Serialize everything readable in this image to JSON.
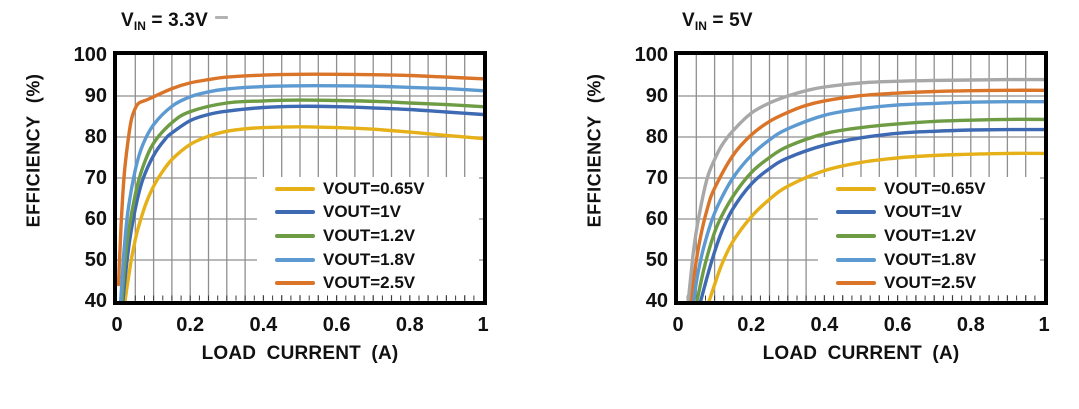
{
  "page": {
    "background": "#ffffff"
  },
  "colors": {
    "frame": "#000000",
    "gridline": "#8f8f8f",
    "minor_tick": "#3a3a3a",
    "text": "#111111",
    "legend_background": "#ffffff",
    "series_yellow": "#E6B019",
    "series_blue": "#3E6AB3",
    "series_green": "#6E9C44",
    "series_lightblue": "#5D9AD1",
    "series_orange": "#DA7429",
    "series_gray": "#A8A8A8"
  },
  "chart_data": [
    {
      "type": "line",
      "title": "VIN = 3.3V",
      "title_parts": {
        "prefix": "V",
        "sub": "IN",
        "rest": " = 3.3V"
      },
      "xlabel": "LOAD CURRENT (A)",
      "ylabel": "EFFICIENCY (%)",
      "xlim": [
        0,
        1
      ],
      "ylim": [
        40,
        100
      ],
      "x_tick_labels": [
        "0",
        "0.2",
        "0.4",
        "0.6",
        "0.8",
        "1"
      ],
      "x_tick_values": [
        0,
        0.2,
        0.4,
        0.6,
        0.8,
        1
      ],
      "y_tick_labels": [
        "100",
        "90",
        "80",
        "70",
        "60",
        "50",
        "40"
      ],
      "y_tick_values": [
        100,
        90,
        80,
        70,
        60,
        50,
        40
      ],
      "grid": {
        "on": true,
        "x_interval": 0.05,
        "y_interval": 10
      },
      "minor_x_tick_interval": 0.025,
      "legend_position": "inside lower right",
      "series": [
        {
          "name": "VOUT=0.65V",
          "color_key": "series_yellow",
          "in_legend": true,
          "points": [
            [
              0.022,
              40
            ],
            [
              0.03,
              45
            ],
            [
              0.04,
              50.5
            ],
            [
              0.05,
              55
            ],
            [
              0.06,
              58.5
            ],
            [
              0.08,
              64
            ],
            [
              0.1,
              68
            ],
            [
              0.12,
              71
            ],
            [
              0.15,
              74.5
            ],
            [
              0.2,
              78.2
            ],
            [
              0.25,
              80.2
            ],
            [
              0.3,
              81.4
            ],
            [
              0.35,
              82
            ],
            [
              0.4,
              82.3
            ],
            [
              0.5,
              82.5
            ],
            [
              0.6,
              82.3
            ],
            [
              0.7,
              81.9
            ],
            [
              0.8,
              81.2
            ],
            [
              0.9,
              80.4
            ],
            [
              1,
              79.6
            ]
          ]
        },
        {
          "name": "VOUT=1V",
          "color_key": "series_blue",
          "in_legend": true,
          "points": [
            [
              0.016,
              40
            ],
            [
              0.025,
              48
            ],
            [
              0.035,
              55
            ],
            [
              0.05,
              62.5
            ],
            [
              0.07,
              69.5
            ],
            [
              0.1,
              75.5
            ],
            [
              0.13,
              79.3
            ],
            [
              0.15,
              81
            ],
            [
              0.2,
              84
            ],
            [
              0.25,
              85.5
            ],
            [
              0.3,
              86.3
            ],
            [
              0.4,
              87.2
            ],
            [
              0.5,
              87.5
            ],
            [
              0.6,
              87.4
            ],
            [
              0.7,
              87.1
            ],
            [
              0.8,
              86.7
            ],
            [
              0.9,
              86.1
            ],
            [
              1,
              85.5
            ]
          ]
        },
        {
          "name": "VOUT=1.2V",
          "color_key": "series_green",
          "in_legend": true,
          "points": [
            [
              0.013,
              40
            ],
            [
              0.02,
              48
            ],
            [
              0.03,
              56
            ],
            [
              0.05,
              66
            ],
            [
              0.07,
              72.5
            ],
            [
              0.1,
              78.5
            ],
            [
              0.15,
              83.5
            ],
            [
              0.2,
              86.2
            ],
            [
              0.3,
              88.3
            ],
            [
              0.4,
              88.8
            ],
            [
              0.5,
              89
            ],
            [
              0.6,
              88.9
            ],
            [
              0.7,
              88.7
            ],
            [
              0.8,
              88.3
            ],
            [
              0.9,
              87.9
            ],
            [
              1,
              87.4
            ]
          ]
        },
        {
          "name": "VOUT=1.8V",
          "color_key": "series_lightblue",
          "in_legend": true,
          "points": [
            [
              0.01,
              40
            ],
            [
              0.015,
              47
            ],
            [
              0.02,
              53
            ],
            [
              0.03,
              62
            ],
            [
              0.05,
              72
            ],
            [
              0.07,
              78
            ],
            [
              0.1,
              83
            ],
            [
              0.15,
              87.5
            ],
            [
              0.2,
              89.8
            ],
            [
              0.25,
              91
            ],
            [
              0.3,
              91.7
            ],
            [
              0.4,
              92.3
            ],
            [
              0.5,
              92.5
            ],
            [
              0.6,
              92.5
            ],
            [
              0.7,
              92.4
            ],
            [
              0.8,
              92.1
            ],
            [
              0.9,
              91.8
            ],
            [
              1,
              91.3
            ]
          ]
        },
        {
          "name": "VOUT=2.5V",
          "color_key": "series_orange",
          "in_legend": true,
          "points": [
            [
              0.004,
              44
            ],
            [
              0.008,
              52
            ],
            [
              0.012,
              60
            ],
            [
              0.02,
              71
            ],
            [
              0.03,
              79
            ],
            [
              0.04,
              84.5
            ],
            [
              0.05,
              87
            ],
            [
              0.06,
              88.3
            ],
            [
              0.08,
              89
            ],
            [
              0.1,
              89.8
            ],
            [
              0.15,
              91.8
            ],
            [
              0.2,
              93.2
            ],
            [
              0.25,
              94
            ],
            [
              0.3,
              94.6
            ],
            [
              0.4,
              95.1
            ],
            [
              0.5,
              95.3
            ],
            [
              0.6,
              95.3
            ],
            [
              0.7,
              95.2
            ],
            [
              0.8,
              95
            ],
            [
              0.9,
              94.6
            ],
            [
              1,
              94.2
            ]
          ]
        }
      ]
    },
    {
      "type": "line",
      "title": "VIN = 5V",
      "title_parts": {
        "prefix": "V",
        "sub": "IN",
        "rest": " = 5V"
      },
      "xlabel": "LOAD CURRENT (A)",
      "ylabel": "EFFICIENCY (%)",
      "xlim": [
        0,
        1
      ],
      "ylim": [
        40,
        100
      ],
      "x_tick_labels": [
        "0",
        "0.2",
        "0.4",
        "0.6",
        "0.8",
        "1"
      ],
      "x_tick_values": [
        0,
        0.2,
        0.4,
        0.6,
        0.8,
        1
      ],
      "y_tick_labels": [
        "100",
        "90",
        "80",
        "70",
        "60",
        "50",
        "40"
      ],
      "y_tick_values": [
        100,
        90,
        80,
        70,
        60,
        50,
        40
      ],
      "grid": {
        "on": true,
        "x_interval": 0.05,
        "y_interval": 10
      },
      "minor_x_tick_interval": 0.025,
      "legend_position": "inside lower right",
      "series": [
        {
          "name": "VOUT=0.65V",
          "color_key": "series_yellow",
          "in_legend": true,
          "points": [
            [
              0.085,
              40
            ],
            [
              0.1,
              44
            ],
            [
              0.12,
              49
            ],
            [
              0.15,
              54.5
            ],
            [
              0.2,
              60.5
            ],
            [
              0.25,
              64.8
            ],
            [
              0.3,
              68
            ],
            [
              0.4,
              71.8
            ],
            [
              0.5,
              73.8
            ],
            [
              0.6,
              74.9
            ],
            [
              0.7,
              75.5
            ],
            [
              0.8,
              75.8
            ],
            [
              0.9,
              76
            ],
            [
              1,
              76
            ]
          ]
        },
        {
          "name": "VOUT=1V",
          "color_key": "series_blue",
          "in_legend": true,
          "points": [
            [
              0.062,
              40
            ],
            [
              0.08,
              46
            ],
            [
              0.1,
              52
            ],
            [
              0.12,
              57
            ],
            [
              0.15,
              62.5
            ],
            [
              0.2,
              68.5
            ],
            [
              0.25,
              72.3
            ],
            [
              0.3,
              74.9
            ],
            [
              0.4,
              78
            ],
            [
              0.5,
              79.8
            ],
            [
              0.6,
              80.9
            ],
            [
              0.7,
              81.4
            ],
            [
              0.8,
              81.7
            ],
            [
              0.9,
              81.8
            ],
            [
              1,
              81.8
            ]
          ]
        },
        {
          "name": "VOUT=1.2V",
          "color_key": "series_green",
          "in_legend": true,
          "points": [
            [
              0.052,
              40
            ],
            [
              0.07,
              47.5
            ],
            [
              0.09,
              54
            ],
            [
              0.11,
              59
            ],
            [
              0.15,
              65.5
            ],
            [
              0.2,
              71.3
            ],
            [
              0.25,
              75
            ],
            [
              0.3,
              77.7
            ],
            [
              0.4,
              80.8
            ],
            [
              0.5,
              82.3
            ],
            [
              0.6,
              83.2
            ],
            [
              0.7,
              83.8
            ],
            [
              0.8,
              84.1
            ],
            [
              0.9,
              84.3
            ],
            [
              1,
              84.3
            ]
          ]
        },
        {
          "name": "VOUT=1.8V",
          "color_key": "series_lightblue",
          "in_legend": true,
          "points": [
            [
              0.042,
              40
            ],
            [
              0.055,
              47
            ],
            [
              0.07,
              53
            ],
            [
              0.09,
              59
            ],
            [
              0.11,
              63.5
            ],
            [
              0.15,
              70
            ],
            [
              0.2,
              75.5
            ],
            [
              0.25,
              79.3
            ],
            [
              0.3,
              82
            ],
            [
              0.4,
              85.3
            ],
            [
              0.5,
              86.9
            ],
            [
              0.6,
              87.8
            ],
            [
              0.7,
              88.2
            ],
            [
              0.8,
              88.5
            ],
            [
              0.9,
              88.6
            ],
            [
              1,
              88.6
            ]
          ]
        },
        {
          "name": "VOUT=2.5V",
          "color_key": "series_orange",
          "in_legend": true,
          "points": [
            [
              0.034,
              40
            ],
            [
              0.045,
              47
            ],
            [
              0.06,
              55
            ],
            [
              0.08,
              62.5
            ],
            [
              0.1,
              67.5
            ],
            [
              0.15,
              75.5
            ],
            [
              0.2,
              80.5
            ],
            [
              0.25,
              83.8
            ],
            [
              0.3,
              86
            ],
            [
              0.35,
              87.7
            ],
            [
              0.4,
              88.8
            ],
            [
              0.5,
              90.1
            ],
            [
              0.6,
              90.7
            ],
            [
              0.7,
              91.1
            ],
            [
              0.8,
              91.3
            ],
            [
              0.9,
              91.4
            ],
            [
              1,
              91.4
            ]
          ]
        },
        {
          "name": "",
          "color_key": "series_gray",
          "in_legend": false,
          "points": [
            [
              0.028,
              40
            ],
            [
              0.035,
              46
            ],
            [
              0.045,
              54
            ],
            [
              0.06,
              62
            ],
            [
              0.08,
              70
            ],
            [
              0.1,
              74.5
            ],
            [
              0.12,
              78
            ],
            [
              0.15,
              81.5
            ],
            [
              0.2,
              85.8
            ],
            [
              0.25,
              88.3
            ],
            [
              0.3,
              90
            ],
            [
              0.35,
              91.3
            ],
            [
              0.4,
              92.2
            ],
            [
              0.5,
              93.2
            ],
            [
              0.6,
              93.6
            ],
            [
              0.7,
              93.8
            ],
            [
              0.8,
              93.9
            ],
            [
              0.9,
              94
            ],
            [
              1,
              94
            ]
          ]
        }
      ]
    }
  ]
}
